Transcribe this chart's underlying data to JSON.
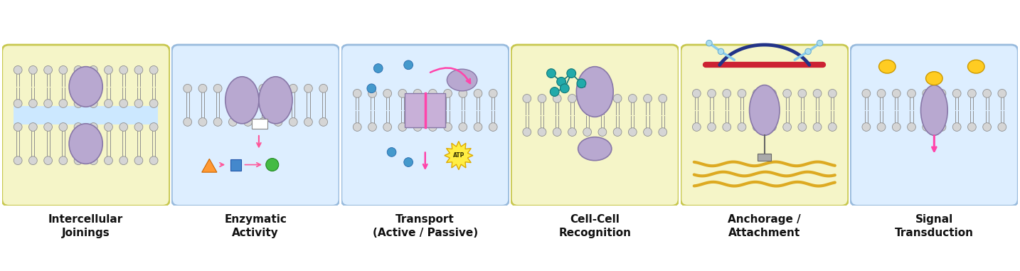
{
  "panels": [
    {
      "title": "Intercellular\nJoinings",
      "bg_color": "#f5f5c8",
      "border_color": "#c8c850",
      "protein_color": "#b8a8d0",
      "protein_edge": "#8878a8",
      "type": "intercellular"
    },
    {
      "title": "Enzymatic\nActivity",
      "bg_color": "#ddeeff",
      "border_color": "#99bbdd",
      "protein_color": "#b8a8d0",
      "protein_edge": "#8878a8",
      "type": "enzymatic"
    },
    {
      "title": "Transport\n(Active / Passive)",
      "bg_color": "#ddeeff",
      "border_color": "#99bbdd",
      "protein_color": "#b8a8d0",
      "protein_edge": "#8878a8",
      "type": "transport"
    },
    {
      "title": "Cell-Cell\nRecognition",
      "bg_color": "#f5f5c8",
      "border_color": "#c8c850",
      "protein_color": "#b8a8d0",
      "protein_edge": "#8878a8",
      "type": "recognition"
    },
    {
      "title": "Anchorage /\nAttachment",
      "bg_color": "#f5f5c8",
      "border_color": "#c8c850",
      "protein_color": "#b8a8d0",
      "protein_edge": "#8878a8",
      "type": "anchorage"
    },
    {
      "title": "Signal\nTransduction",
      "bg_color": "#ddeeff",
      "border_color": "#99bbdd",
      "protein_color": "#b8a8d0",
      "protein_edge": "#8878a8",
      "type": "signal"
    }
  ],
  "title_fontsize": 11,
  "bg_white": "#ffffff",
  "head_color": "#d5d5d5",
  "head_edge": "#909090",
  "n_circ": 10,
  "cr": 0.025,
  "tl": 0.075
}
